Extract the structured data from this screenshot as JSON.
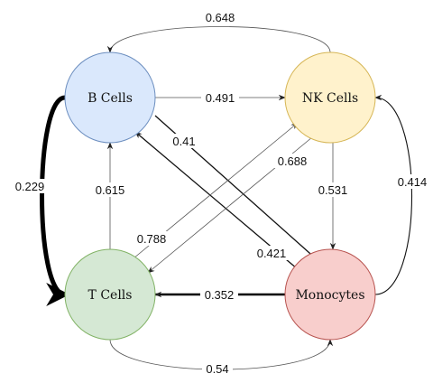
{
  "colors": {
    "background": "#ffffff",
    "edge": "#222222"
  },
  "nodes": [
    {
      "id": "b",
      "label": "B Cells",
      "fill": "#dae8fc",
      "stroke": "#6c8ebf"
    },
    {
      "id": "nk",
      "label": "NK Cells",
      "fill": "#fff2cc",
      "stroke": "#d6b656"
    },
    {
      "id": "t",
      "label": "T Cells",
      "fill": "#d5e8d4",
      "stroke": "#82b366"
    },
    {
      "id": "mono",
      "label": "Monocytes",
      "fill": "#f8cecc",
      "stroke": "#b85450"
    }
  ],
  "edges": [
    {
      "from": "nk",
      "to": "b",
      "label": "0.648"
    },
    {
      "from": "b",
      "to": "nk",
      "label": "0.491"
    },
    {
      "from": "b",
      "to": "t",
      "label": "0.229"
    },
    {
      "from": "t",
      "to": "b",
      "label": "0.615"
    },
    {
      "from": "b",
      "to": "mono",
      "label": "0.41"
    },
    {
      "from": "mono",
      "to": "b",
      "label": "0.421"
    },
    {
      "from": "nk",
      "to": "t",
      "label": "0.688"
    },
    {
      "from": "t",
      "to": "nk",
      "label": "0.788"
    },
    {
      "from": "nk",
      "to": "mono",
      "label": "0.531"
    },
    {
      "from": "mono",
      "to": "nk",
      "label": "0.414"
    },
    {
      "from": "mono",
      "to": "t",
      "label": "0.352"
    },
    {
      "from": "t",
      "to": "mono",
      "label": "0.54"
    }
  ]
}
